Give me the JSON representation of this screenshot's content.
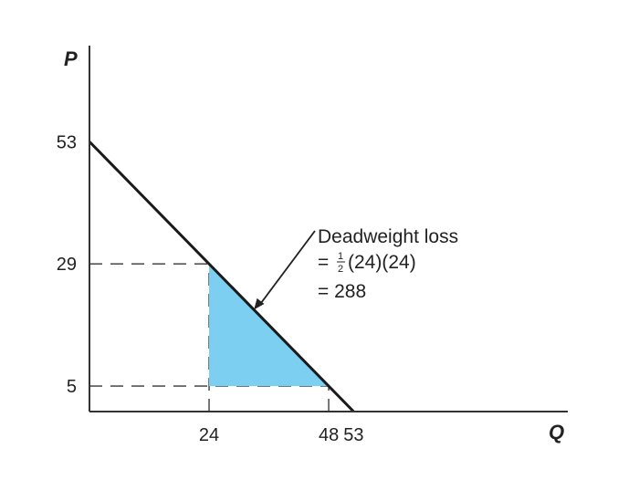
{
  "chart_data": {
    "type": "line",
    "xlabel": "Q",
    "ylabel": "P",
    "xlim": [
      0,
      60
    ],
    "ylim": [
      0,
      60
    ],
    "x_ticks": [
      24,
      48,
      53
    ],
    "y_ticks": [
      53,
      29,
      5
    ],
    "demand_line": {
      "points": [
        [
          0,
          53
        ],
        [
          53,
          0
        ]
      ]
    },
    "guide_lines": [
      {
        "from": [
          0,
          29
        ],
        "to": [
          24,
          29
        ]
      },
      {
        "from": [
          0,
          5
        ],
        "to": [
          48,
          5
        ]
      },
      {
        "from": [
          24,
          0
        ],
        "to": [
          24,
          29
        ]
      },
      {
        "from": [
          48,
          0
        ],
        "to": [
          48,
          5
        ]
      }
    ],
    "shaded_region": {
      "vertices": [
        [
          24,
          29
        ],
        [
          48,
          5
        ],
        [
          24,
          5
        ]
      ],
      "color": "#7dcff2"
    },
    "annotation": {
      "line1": "Deadweight loss",
      "line2_prefix": "= ",
      "frac_num": "1",
      "frac_den": "2",
      "line2_suffix": "(24)(24)",
      "line3": "= 288",
      "arrow_target": [
        33,
        20
      ]
    },
    "grid": false
  }
}
